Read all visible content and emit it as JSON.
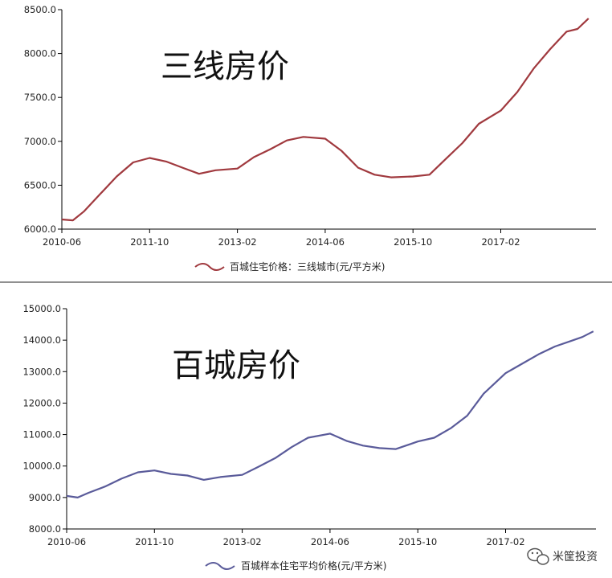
{
  "chart_data": [
    {
      "type": "line",
      "title": "三线房价",
      "xlabel": "",
      "ylabel": "",
      "x_ticks": [
        "2010-06",
        "2011-10",
        "2013-02",
        "2014-06",
        "2015-10",
        "2017-02"
      ],
      "y_ticks": [
        "6000.0",
        "6500.0",
        "7000.0",
        "7500.0",
        "8000.0",
        "8500.0"
      ],
      "ylim": [
        6000,
        8500
      ],
      "grid": false,
      "legend_position": "bottom",
      "color": "#a0393e",
      "series": [
        {
          "name": "百城住宅价格：三线城市(元/平方米)",
          "points": [
            [
              "2010-06",
              6110
            ],
            [
              "2010-08",
              6100
            ],
            [
              "2010-10",
              6200
            ],
            [
              "2011-01",
              6400
            ],
            [
              "2011-04",
              6600
            ],
            [
              "2011-07",
              6760
            ],
            [
              "2011-10",
              6810
            ],
            [
              "2012-01",
              6770
            ],
            [
              "2012-04",
              6700
            ],
            [
              "2012-07",
              6630
            ],
            [
              "2012-10",
              6670
            ],
            [
              "2013-02",
              6690
            ],
            [
              "2013-05",
              6820
            ],
            [
              "2013-08",
              6910
            ],
            [
              "2013-11",
              7010
            ],
            [
              "2014-02",
              7050
            ],
            [
              "2014-06",
              7030
            ],
            [
              "2014-09",
              6890
            ],
            [
              "2014-12",
              6700
            ],
            [
              "2015-03",
              6620
            ],
            [
              "2015-06",
              6590
            ],
            [
              "2015-10",
              6600
            ],
            [
              "2016-01",
              6620
            ],
            [
              "2016-04",
              6800
            ],
            [
              "2016-07",
              6980
            ],
            [
              "2016-10",
              7200
            ],
            [
              "2017-02",
              7350
            ],
            [
              "2017-05",
              7560
            ],
            [
              "2017-08",
              7830
            ],
            [
              "2017-11",
              8050
            ],
            [
              "2018-02",
              8250
            ],
            [
              "2018-04",
              8280
            ],
            [
              "2018-06",
              8400
            ]
          ]
        }
      ]
    },
    {
      "type": "line",
      "title": "百城房价",
      "xlabel": "",
      "ylabel": "",
      "x_ticks": [
        "2010-06",
        "2011-10",
        "2013-02",
        "2014-06",
        "2015-10",
        "2017-02"
      ],
      "y_ticks": [
        "8000.0",
        "9000.0",
        "10000.0",
        "11000.0",
        "12000.0",
        "13000.0",
        "14000.0",
        "15000.0"
      ],
      "ylim": [
        8000,
        15000
      ],
      "grid": false,
      "legend_position": "bottom",
      "color": "#5a5b9a",
      "series": [
        {
          "name": "百城样本住宅平均价格(元/平方米)",
          "points": [
            [
              "2010-06",
              9050
            ],
            [
              "2010-08",
              9000
            ],
            [
              "2010-10",
              9150
            ],
            [
              "2011-01",
              9350
            ],
            [
              "2011-04",
              9600
            ],
            [
              "2011-07",
              9800
            ],
            [
              "2011-10",
              9860
            ],
            [
              "2012-01",
              9750
            ],
            [
              "2012-04",
              9700
            ],
            [
              "2012-07",
              9560
            ],
            [
              "2012-10",
              9650
            ],
            [
              "2013-02",
              9720
            ],
            [
              "2013-05",
              9980
            ],
            [
              "2013-08",
              10250
            ],
            [
              "2013-11",
              10600
            ],
            [
              "2014-02",
              10900
            ],
            [
              "2014-06",
              11030
            ],
            [
              "2014-09",
              10800
            ],
            [
              "2014-12",
              10650
            ],
            [
              "2015-03",
              10570
            ],
            [
              "2015-06",
              10540
            ],
            [
              "2015-10",
              10780
            ],
            [
              "2016-01",
              10900
            ],
            [
              "2016-04",
              11200
            ],
            [
              "2016-07",
              11600
            ],
            [
              "2016-10",
              12300
            ],
            [
              "2017-02",
              12950
            ],
            [
              "2017-05",
              13250
            ],
            [
              "2017-08",
              13550
            ],
            [
              "2017-11",
              13800
            ],
            [
              "2018-02",
              13980
            ],
            [
              "2018-04",
              14100
            ],
            [
              "2018-06",
              14280
            ]
          ]
        }
      ]
    }
  ],
  "watermark": {
    "text": "米筐投资",
    "icon": "wechat-icon"
  }
}
